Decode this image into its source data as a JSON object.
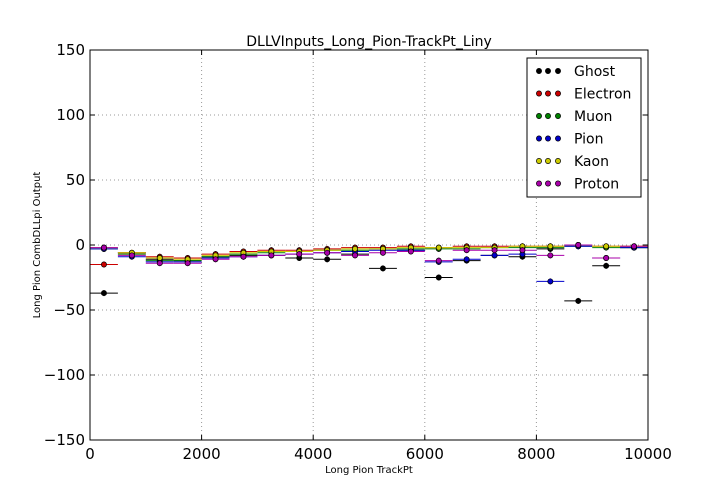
{
  "chart_data": {
    "type": "scatter",
    "title": "DLLVInputs_Long_Pion-TrackPt_Liny",
    "xlabel": "Long Pion TrackPt",
    "ylabel": "Long Pion CombDLLpi Output",
    "xlim": [
      0,
      10000
    ],
    "ylim": [
      -150,
      150
    ],
    "xticks": [
      0,
      2000,
      4000,
      6000,
      8000,
      10000
    ],
    "xtick_labels": [
      "0",
      "2000",
      "4000",
      "6000",
      "8000",
      "10000"
    ],
    "yticks": [
      -150,
      -100,
      -50,
      0,
      50,
      100,
      150
    ],
    "ytick_labels": [
      "−150",
      "−100",
      "−50",
      "0",
      "50",
      "100",
      "150"
    ],
    "grid": true,
    "legend_position": "top-right",
    "bin_half_width": 250,
    "x": [
      250,
      750,
      1250,
      1750,
      2250,
      2750,
      3250,
      3750,
      4250,
      4750,
      5250,
      5750,
      6250,
      6750,
      7250,
      7750,
      8250,
      8750,
      9250,
      9750
    ],
    "series": [
      {
        "name": "Ghost",
        "color": "#000000",
        "values": [
          -37,
          -6,
          -11,
          -12,
          -9,
          -8,
          -8,
          -10,
          -11,
          -7,
          -18,
          -4,
          -25,
          -12,
          -8,
          -9,
          -3,
          -43,
          -16,
          -2
        ]
      },
      {
        "name": "Electron",
        "color": "#cc0000",
        "values": [
          -15,
          -6,
          -9,
          -10,
          -7,
          -5,
          -4,
          -4,
          -3,
          -2,
          -2,
          -1,
          -2,
          -1,
          -1,
          -1,
          -1,
          0,
          -1,
          -1
        ]
      },
      {
        "name": "Muon",
        "color": "#008000",
        "values": [
          -3,
          -7,
          -12,
          -12,
          -9,
          -7,
          -6,
          -5,
          -4,
          -4,
          -3,
          -3,
          -3,
          -3,
          -2,
          -2,
          -2,
          -1,
          -2,
          -2
        ]
      },
      {
        "name": "Pion",
        "color": "#0000cc",
        "values": [
          -3,
          -9,
          -13,
          -13,
          -10,
          -9,
          -8,
          -7,
          -6,
          -5,
          -4,
          -4,
          -13,
          -11,
          -8,
          -7,
          -28,
          -1,
          -10,
          -2
        ]
      },
      {
        "name": "Kaon",
        "color": "#cccc00",
        "values": [
          -2,
          -6,
          -10,
          -11,
          -8,
          -6,
          -5,
          -5,
          -4,
          -3,
          -3,
          -2,
          -2,
          -2,
          -2,
          -1,
          -1,
          0,
          -1,
          -1
        ]
      },
      {
        "name": "Proton",
        "color": "#aa00aa",
        "values": [
          -2,
          -8,
          -14,
          -14,
          -11,
          -9,
          -8,
          -7,
          -6,
          -8,
          -6,
          -5,
          -12,
          -4,
          -4,
          -4,
          -8,
          0,
          -10,
          -1
        ]
      }
    ]
  }
}
